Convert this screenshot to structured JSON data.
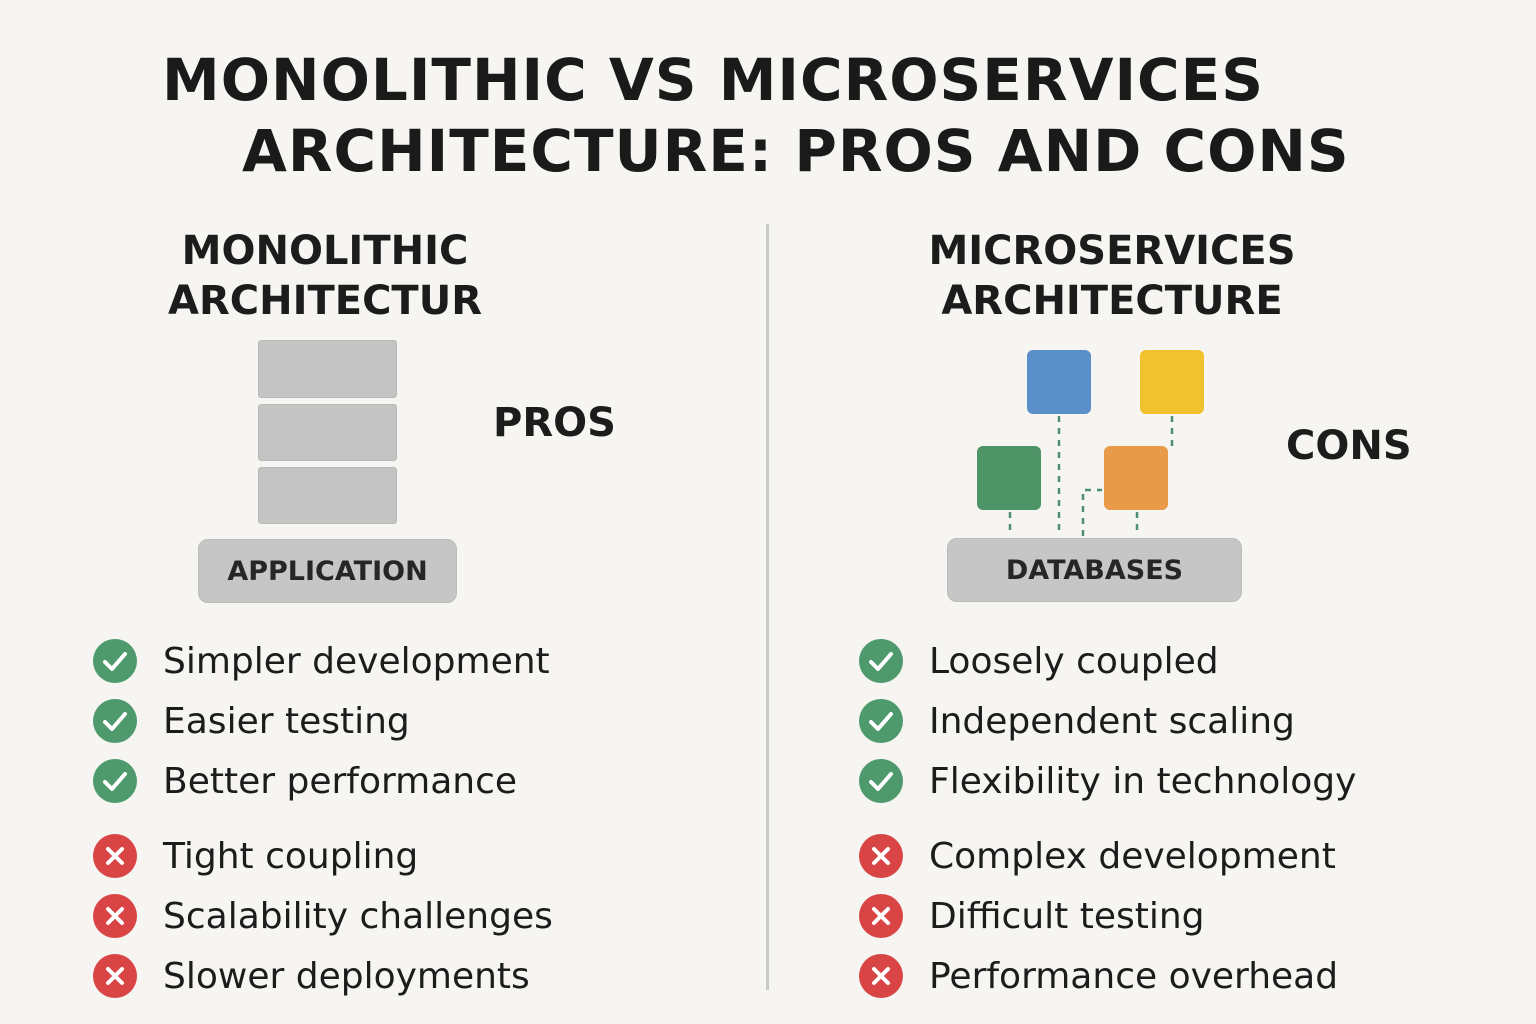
{
  "title": {
    "line1": "MONOLITHIC VS MICROSERVICES",
    "line2": "ARCHITECTURE: PROS AND CONS"
  },
  "monolithic": {
    "heading_line1": "MONOLITHIC",
    "heading_line2": "ARCHITECTUR",
    "side_label": "PROS",
    "base_label": "APPLICATION",
    "pros": [
      "Simpler development",
      "Easier testing",
      "Better performance"
    ],
    "cons": [
      "Tight coupling",
      "Scalability challenges",
      "Slower deployments"
    ]
  },
  "microservices": {
    "heading_line1": "MICROSERVICES",
    "heading_line2": "ARCHITECTURE",
    "side_label": "CONS",
    "base_label": "DATABASES",
    "pros": [
      "Loosely coupled",
      "Independent scaling",
      "Flexibility in technology"
    ],
    "cons": [
      "Complex development",
      "Difficult testing",
      "Performance overhead"
    ]
  },
  "colors": {
    "background": "#f6f5f2",
    "check": "#4e9a6c",
    "cross": "#d94545",
    "block_gray": "#c4c4c4",
    "service_blue": "#5b8fca",
    "service_yellow": "#f2c12e",
    "service_green": "#4f9467",
    "service_orange": "#e89a48",
    "connector": "#4f8f7a"
  },
  "icons": {
    "pro": "check-circle-icon",
    "con": "x-circle-icon"
  }
}
